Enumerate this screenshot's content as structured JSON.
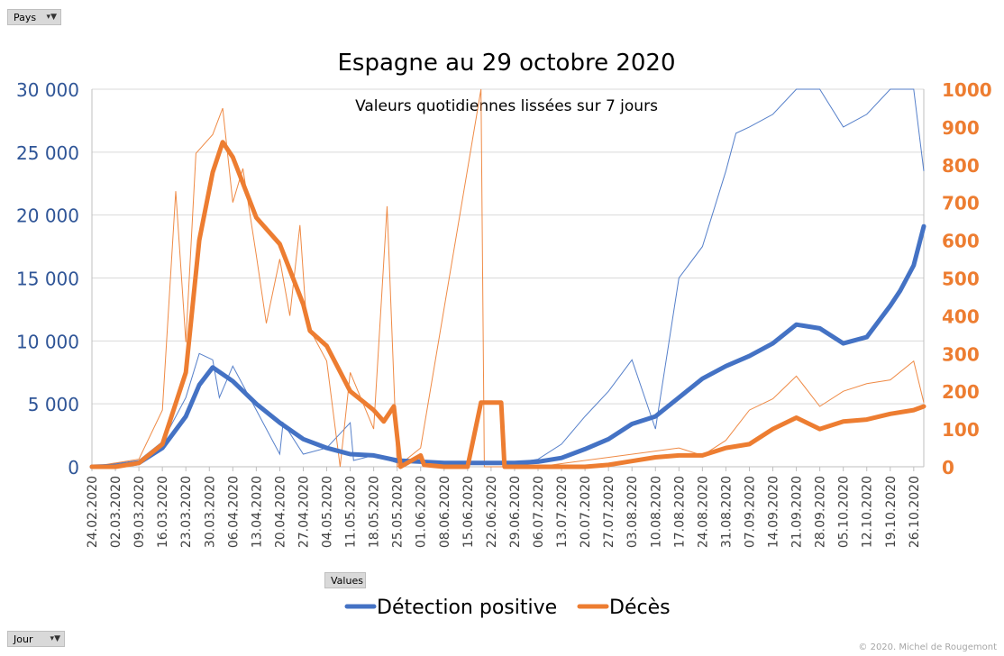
{
  "buttons": {
    "pays": "Pays",
    "values": "Values",
    "jour": "Jour"
  },
  "copyright": "© 2020.  Michel de Rougemont",
  "colors": {
    "positive": "#4472c4",
    "deaths": "#ed7d31",
    "leftAxis": "#2f5597",
    "rightAxis": "#ed7d31"
  },
  "chart_data": {
    "type": "line",
    "title": "Espagne au 29 octobre 2020",
    "subtitle": "Valeurs quotidiennes lissées sur 7 jours",
    "legend_position": "bottom",
    "grid": true,
    "x_start": "2020-02-24",
    "x_end": "2020-10-29",
    "x_ticks": [
      "24.02.2020",
      "02.03.2020",
      "09.03.2020",
      "16.03.2020",
      "23.03.2020",
      "30.03.2020",
      "06.04.2020",
      "13.04.2020",
      "20.04.2020",
      "27.04.2020",
      "04.05.2020",
      "11.05.2020",
      "18.05.2020",
      "25.05.2020",
      "01.06.2020",
      "08.06.2020",
      "15.06.2020",
      "22.06.2020",
      "29.06.2020",
      "06.07.2020",
      "13.07.2020",
      "20.07.2020",
      "27.07.2020",
      "03.08.2020",
      "10.08.2020",
      "17.08.2020",
      "24.08.2020",
      "31.08.2020",
      "07.09.2020",
      "14.09.2020",
      "21.09.2020",
      "28.09.2020",
      "05.10.2020",
      "12.10.2020",
      "19.10.2020",
      "26.10.2020"
    ],
    "y_left": {
      "min": 0,
      "max": 30000,
      "ticks": [
        "0",
        "5 000",
        "10 000",
        "15 000",
        "20 000",
        "25 000",
        "30 000"
      ]
    },
    "y_right": {
      "min": 0,
      "max": 1000,
      "ticks": [
        "0",
        "100",
        "200",
        "300",
        "400",
        "500",
        "600",
        "700",
        "800",
        "900",
        "1000"
      ]
    },
    "series": [
      {
        "name": "Détection positive",
        "axis": "left",
        "smoothed": [
          [
            "2020-02-24",
            0
          ],
          [
            "2020-03-02",
            50
          ],
          [
            "2020-03-09",
            300
          ],
          [
            "2020-03-16",
            1500
          ],
          [
            "2020-03-23",
            4000
          ],
          [
            "2020-03-27",
            6500
          ],
          [
            "2020-03-31",
            7900
          ],
          [
            "2020-04-06",
            6800
          ],
          [
            "2020-04-13",
            5000
          ],
          [
            "2020-04-20",
            3500
          ],
          [
            "2020-04-27",
            2200
          ],
          [
            "2020-05-04",
            1500
          ],
          [
            "2020-05-11",
            1000
          ],
          [
            "2020-05-18",
            900
          ],
          [
            "2020-05-25",
            500
          ],
          [
            "2020-06-01",
            400
          ],
          [
            "2020-06-08",
            300
          ],
          [
            "2020-06-15",
            300
          ],
          [
            "2020-06-22",
            300
          ],
          [
            "2020-06-29",
            300
          ],
          [
            "2020-07-06",
            400
          ],
          [
            "2020-07-13",
            700
          ],
          [
            "2020-07-20",
            1400
          ],
          [
            "2020-07-27",
            2200
          ],
          [
            "2020-08-03",
            3400
          ],
          [
            "2020-08-10",
            4000
          ],
          [
            "2020-08-17",
            5500
          ],
          [
            "2020-08-24",
            7000
          ],
          [
            "2020-08-31",
            8000
          ],
          [
            "2020-09-07",
            8800
          ],
          [
            "2020-09-14",
            9800
          ],
          [
            "2020-09-21",
            11300
          ],
          [
            "2020-09-28",
            11000
          ],
          [
            "2020-10-05",
            9800
          ],
          [
            "2020-10-12",
            10300
          ],
          [
            "2020-10-19",
            12800
          ],
          [
            "2020-10-22",
            14000
          ],
          [
            "2020-10-26",
            16000
          ],
          [
            "2020-10-29",
            19100
          ]
        ],
        "daily": [
          [
            "2020-02-24",
            0
          ],
          [
            "2020-03-09",
            500
          ],
          [
            "2020-03-16",
            2000
          ],
          [
            "2020-03-23",
            5500
          ],
          [
            "2020-03-27",
            9000
          ],
          [
            "2020-03-31",
            8500
          ],
          [
            "2020-04-02",
            5500
          ],
          [
            "2020-04-06",
            8000
          ],
          [
            "2020-04-13",
            4500
          ],
          [
            "2020-04-20",
            1000
          ],
          [
            "2020-04-21",
            3500
          ],
          [
            "2020-04-27",
            1000
          ],
          [
            "2020-05-04",
            1500
          ],
          [
            "2020-05-11",
            3500
          ],
          [
            "2020-05-12",
            500
          ],
          [
            "2020-05-18",
            900
          ],
          [
            "2020-05-25",
            300
          ],
          [
            "2020-06-01",
            500
          ],
          [
            "2020-06-08",
            300
          ],
          [
            "2020-06-15",
            400
          ],
          [
            "2020-06-22",
            400
          ],
          [
            "2020-06-29",
            300
          ],
          [
            "2020-07-06",
            600
          ],
          [
            "2020-07-13",
            1800
          ],
          [
            "2020-07-20",
            4000
          ],
          [
            "2020-07-27",
            6000
          ],
          [
            "2020-08-03",
            8500
          ],
          [
            "2020-08-10",
            3000
          ],
          [
            "2020-08-17",
            15000
          ],
          [
            "2020-08-24",
            17500
          ],
          [
            "2020-08-31",
            23500
          ],
          [
            "2020-09-03",
            26500
          ],
          [
            "2020-09-07",
            27000
          ],
          [
            "2020-09-14",
            28000
          ],
          [
            "2020-09-21",
            31000
          ],
          [
            "2020-09-28",
            30000
          ],
          [
            "2020-10-05",
            27000
          ],
          [
            "2020-10-12",
            28000
          ],
          [
            "2020-10-19",
            30000
          ],
          [
            "2020-10-26",
            30000
          ],
          [
            "2020-10-29",
            23500
          ]
        ]
      },
      {
        "name": "Décès",
        "axis": "right",
        "smoothed": [
          [
            "2020-02-24",
            0
          ],
          [
            "2020-03-02",
            0
          ],
          [
            "2020-03-09",
            10
          ],
          [
            "2020-03-16",
            60
          ],
          [
            "2020-03-23",
            250
          ],
          [
            "2020-03-27",
            600
          ],
          [
            "2020-03-31",
            780
          ],
          [
            "2020-04-03",
            860
          ],
          [
            "2020-04-06",
            820
          ],
          [
            "2020-04-13",
            660
          ],
          [
            "2020-04-20",
            590
          ],
          [
            "2020-04-27",
            430
          ],
          [
            "2020-04-29",
            360
          ],
          [
            "2020-05-04",
            320
          ],
          [
            "2020-05-11",
            200
          ],
          [
            "2020-05-18",
            150
          ],
          [
            "2020-05-21",
            120
          ],
          [
            "2020-05-24",
            160
          ],
          [
            "2020-05-26",
            0
          ],
          [
            "2020-06-01",
            30
          ],
          [
            "2020-06-02",
            5
          ],
          [
            "2020-06-08",
            0
          ],
          [
            "2020-06-15",
            0
          ],
          [
            "2020-06-19",
            170
          ],
          [
            "2020-06-25",
            170
          ],
          [
            "2020-06-26",
            0
          ],
          [
            "2020-07-06",
            0
          ],
          [
            "2020-07-20",
            0
          ],
          [
            "2020-07-27",
            5
          ],
          [
            "2020-08-03",
            15
          ],
          [
            "2020-08-10",
            25
          ],
          [
            "2020-08-17",
            30
          ],
          [
            "2020-08-24",
            30
          ],
          [
            "2020-08-31",
            50
          ],
          [
            "2020-09-07",
            60
          ],
          [
            "2020-09-14",
            100
          ],
          [
            "2020-09-21",
            130
          ],
          [
            "2020-09-28",
            100
          ],
          [
            "2020-10-05",
            120
          ],
          [
            "2020-10-12",
            125
          ],
          [
            "2020-10-19",
            140
          ],
          [
            "2020-10-26",
            150
          ],
          [
            "2020-10-29",
            160
          ]
        ],
        "daily": [
          [
            "2020-02-24",
            0
          ],
          [
            "2020-03-09",
            20
          ],
          [
            "2020-03-16",
            150
          ],
          [
            "2020-03-20",
            730
          ],
          [
            "2020-03-23",
            330
          ],
          [
            "2020-03-26",
            830
          ],
          [
            "2020-03-31",
            880
          ],
          [
            "2020-04-03",
            950
          ],
          [
            "2020-04-06",
            700
          ],
          [
            "2020-04-09",
            790
          ],
          [
            "2020-04-13",
            560
          ],
          [
            "2020-04-16",
            380
          ],
          [
            "2020-04-20",
            550
          ],
          [
            "2020-04-23",
            400
          ],
          [
            "2020-04-26",
            640
          ],
          [
            "2020-04-28",
            380
          ],
          [
            "2020-05-04",
            280
          ],
          [
            "2020-05-08",
            0
          ],
          [
            "2020-05-11",
            250
          ],
          [
            "2020-05-18",
            100
          ],
          [
            "2020-05-22",
            690
          ],
          [
            "2020-05-25",
            0
          ],
          [
            "2020-06-01",
            50
          ],
          [
            "2020-06-19",
            1000
          ],
          [
            "2020-06-20",
            0
          ],
          [
            "2020-07-06",
            0
          ],
          [
            "2020-08-17",
            50
          ],
          [
            "2020-08-24",
            30
          ],
          [
            "2020-08-31",
            70
          ],
          [
            "2020-09-07",
            150
          ],
          [
            "2020-09-14",
            180
          ],
          [
            "2020-09-21",
            240
          ],
          [
            "2020-09-28",
            160
          ],
          [
            "2020-10-05",
            200
          ],
          [
            "2020-10-12",
            220
          ],
          [
            "2020-10-19",
            230
          ],
          [
            "2020-10-26",
            280
          ],
          [
            "2020-10-29",
            170
          ]
        ]
      }
    ]
  }
}
